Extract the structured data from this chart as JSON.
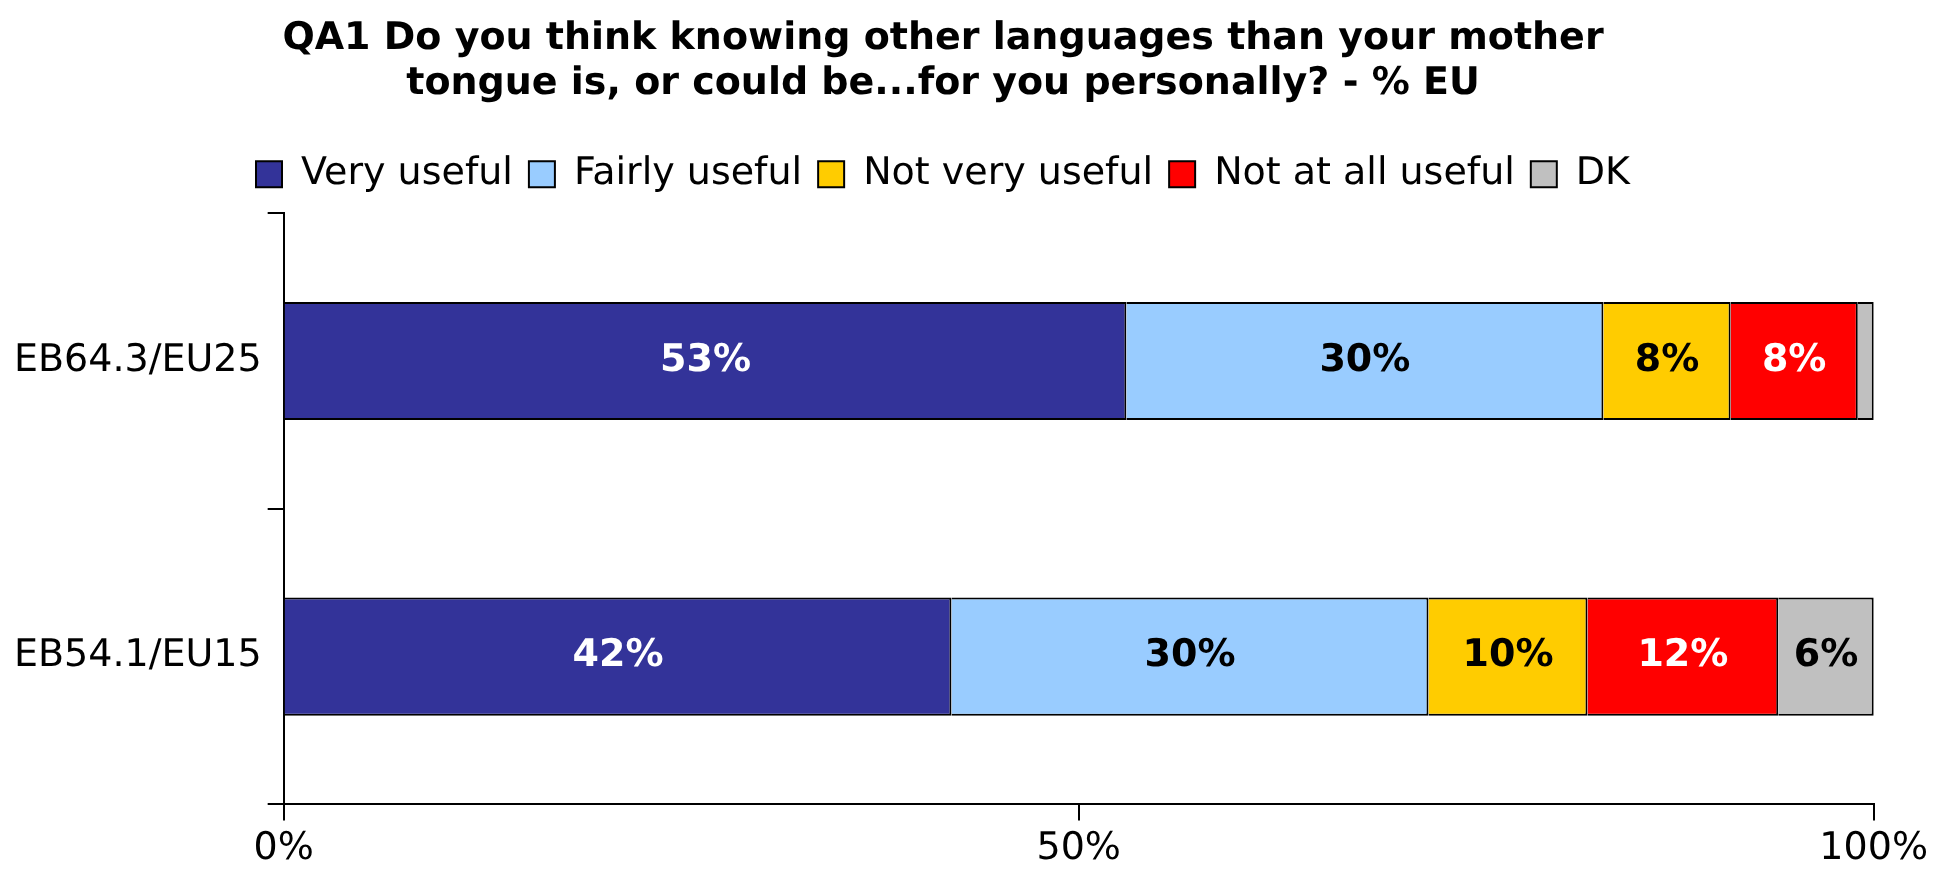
{
  "chart_data": {
    "type": "bar",
    "orientation": "horizontal",
    "stacked": true,
    "title": "QA1 Do you think knowing other languages than your mother\ntongue is, or could be...for you personally? - % EU",
    "categories": [
      "EB64.3/EU25",
      "EB54.1/EU15"
    ],
    "series": [
      {
        "name": "Very useful",
        "color": "#333399",
        "values": [
          53,
          42
        ],
        "value_labels": [
          "53%",
          "42%"
        ]
      },
      {
        "name": "Fairly useful",
        "color": "#99ccff",
        "values": [
          30,
          30
        ],
        "value_labels": [
          "30%",
          "30%"
        ]
      },
      {
        "name": "Not very useful",
        "color": "#ffcc00",
        "values": [
          8,
          10
        ],
        "value_labels": [
          "8%",
          "10%"
        ]
      },
      {
        "name": "Not at all useful",
        "color": "#ff0000",
        "values": [
          8,
          12
        ],
        "value_labels": [
          "8%",
          "12%"
        ]
      },
      {
        "name": "DK",
        "color": "#c0c0c0",
        "values": [
          1,
          6
        ],
        "value_labels": [
          null,
          "6%"
        ]
      }
    ],
    "xlim": [
      0,
      100
    ],
    "xticks": [
      {
        "value": 0,
        "label": "0%"
      },
      {
        "value": 50,
        "label": "50%"
      },
      {
        "value": 100,
        "label": "100%"
      }
    ],
    "grid": false,
    "legend": "top"
  }
}
